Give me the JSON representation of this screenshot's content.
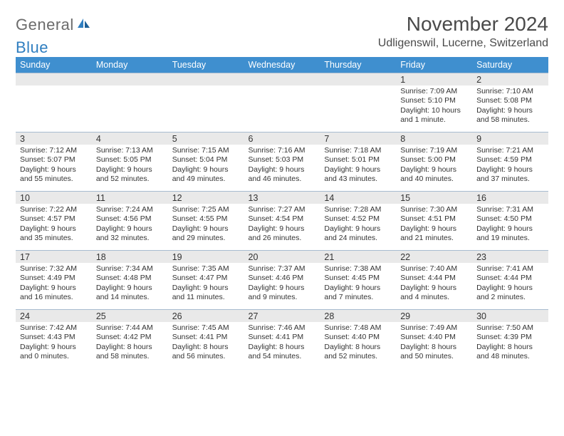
{
  "logo": {
    "word1": "General",
    "word2": "Blue"
  },
  "header": {
    "title": "November 2024",
    "subtitle": "Udligenswil, Lucerne, Switzerland"
  },
  "style": {
    "header_bg": "#3f8fcf",
    "header_fg": "#ffffff",
    "daynum_bg": "#e9e9e9",
    "cell_border": "#a8bcd0",
    "title_fontsize": 28,
    "subtitle_fontsize": 16,
    "dayhead_fontsize": 12.5,
    "event_fontsize": 10.5,
    "logo_gray": "#6b6b6b",
    "logo_blue": "#2f7ec0",
    "page_bg": "#ffffff"
  },
  "day_headers": [
    "Sunday",
    "Monday",
    "Tuesday",
    "Wednesday",
    "Thursday",
    "Friday",
    "Saturday"
  ],
  "weeks": [
    [
      {
        "n": "",
        "sunrise": "",
        "sunset": "",
        "daylight": ""
      },
      {
        "n": "",
        "sunrise": "",
        "sunset": "",
        "daylight": ""
      },
      {
        "n": "",
        "sunrise": "",
        "sunset": "",
        "daylight": ""
      },
      {
        "n": "",
        "sunrise": "",
        "sunset": "",
        "daylight": ""
      },
      {
        "n": "",
        "sunrise": "",
        "sunset": "",
        "daylight": ""
      },
      {
        "n": "1",
        "sunrise": "Sunrise: 7:09 AM",
        "sunset": "Sunset: 5:10 PM",
        "daylight": "Daylight: 10 hours and 1 minute."
      },
      {
        "n": "2",
        "sunrise": "Sunrise: 7:10 AM",
        "sunset": "Sunset: 5:08 PM",
        "daylight": "Daylight: 9 hours and 58 minutes."
      }
    ],
    [
      {
        "n": "3",
        "sunrise": "Sunrise: 7:12 AM",
        "sunset": "Sunset: 5:07 PM",
        "daylight": "Daylight: 9 hours and 55 minutes."
      },
      {
        "n": "4",
        "sunrise": "Sunrise: 7:13 AM",
        "sunset": "Sunset: 5:05 PM",
        "daylight": "Daylight: 9 hours and 52 minutes."
      },
      {
        "n": "5",
        "sunrise": "Sunrise: 7:15 AM",
        "sunset": "Sunset: 5:04 PM",
        "daylight": "Daylight: 9 hours and 49 minutes."
      },
      {
        "n": "6",
        "sunrise": "Sunrise: 7:16 AM",
        "sunset": "Sunset: 5:03 PM",
        "daylight": "Daylight: 9 hours and 46 minutes."
      },
      {
        "n": "7",
        "sunrise": "Sunrise: 7:18 AM",
        "sunset": "Sunset: 5:01 PM",
        "daylight": "Daylight: 9 hours and 43 minutes."
      },
      {
        "n": "8",
        "sunrise": "Sunrise: 7:19 AM",
        "sunset": "Sunset: 5:00 PM",
        "daylight": "Daylight: 9 hours and 40 minutes."
      },
      {
        "n": "9",
        "sunrise": "Sunrise: 7:21 AM",
        "sunset": "Sunset: 4:59 PM",
        "daylight": "Daylight: 9 hours and 37 minutes."
      }
    ],
    [
      {
        "n": "10",
        "sunrise": "Sunrise: 7:22 AM",
        "sunset": "Sunset: 4:57 PM",
        "daylight": "Daylight: 9 hours and 35 minutes."
      },
      {
        "n": "11",
        "sunrise": "Sunrise: 7:24 AM",
        "sunset": "Sunset: 4:56 PM",
        "daylight": "Daylight: 9 hours and 32 minutes."
      },
      {
        "n": "12",
        "sunrise": "Sunrise: 7:25 AM",
        "sunset": "Sunset: 4:55 PM",
        "daylight": "Daylight: 9 hours and 29 minutes."
      },
      {
        "n": "13",
        "sunrise": "Sunrise: 7:27 AM",
        "sunset": "Sunset: 4:54 PM",
        "daylight": "Daylight: 9 hours and 26 minutes."
      },
      {
        "n": "14",
        "sunrise": "Sunrise: 7:28 AM",
        "sunset": "Sunset: 4:52 PM",
        "daylight": "Daylight: 9 hours and 24 minutes."
      },
      {
        "n": "15",
        "sunrise": "Sunrise: 7:30 AM",
        "sunset": "Sunset: 4:51 PM",
        "daylight": "Daylight: 9 hours and 21 minutes."
      },
      {
        "n": "16",
        "sunrise": "Sunrise: 7:31 AM",
        "sunset": "Sunset: 4:50 PM",
        "daylight": "Daylight: 9 hours and 19 minutes."
      }
    ],
    [
      {
        "n": "17",
        "sunrise": "Sunrise: 7:32 AM",
        "sunset": "Sunset: 4:49 PM",
        "daylight": "Daylight: 9 hours and 16 minutes."
      },
      {
        "n": "18",
        "sunrise": "Sunrise: 7:34 AM",
        "sunset": "Sunset: 4:48 PM",
        "daylight": "Daylight: 9 hours and 14 minutes."
      },
      {
        "n": "19",
        "sunrise": "Sunrise: 7:35 AM",
        "sunset": "Sunset: 4:47 PM",
        "daylight": "Daylight: 9 hours and 11 minutes."
      },
      {
        "n": "20",
        "sunrise": "Sunrise: 7:37 AM",
        "sunset": "Sunset: 4:46 PM",
        "daylight": "Daylight: 9 hours and 9 minutes."
      },
      {
        "n": "21",
        "sunrise": "Sunrise: 7:38 AM",
        "sunset": "Sunset: 4:45 PM",
        "daylight": "Daylight: 9 hours and 7 minutes."
      },
      {
        "n": "22",
        "sunrise": "Sunrise: 7:40 AM",
        "sunset": "Sunset: 4:44 PM",
        "daylight": "Daylight: 9 hours and 4 minutes."
      },
      {
        "n": "23",
        "sunrise": "Sunrise: 7:41 AM",
        "sunset": "Sunset: 4:44 PM",
        "daylight": "Daylight: 9 hours and 2 minutes."
      }
    ],
    [
      {
        "n": "24",
        "sunrise": "Sunrise: 7:42 AM",
        "sunset": "Sunset: 4:43 PM",
        "daylight": "Daylight: 9 hours and 0 minutes."
      },
      {
        "n": "25",
        "sunrise": "Sunrise: 7:44 AM",
        "sunset": "Sunset: 4:42 PM",
        "daylight": "Daylight: 8 hours and 58 minutes."
      },
      {
        "n": "26",
        "sunrise": "Sunrise: 7:45 AM",
        "sunset": "Sunset: 4:41 PM",
        "daylight": "Daylight: 8 hours and 56 minutes."
      },
      {
        "n": "27",
        "sunrise": "Sunrise: 7:46 AM",
        "sunset": "Sunset: 4:41 PM",
        "daylight": "Daylight: 8 hours and 54 minutes."
      },
      {
        "n": "28",
        "sunrise": "Sunrise: 7:48 AM",
        "sunset": "Sunset: 4:40 PM",
        "daylight": "Daylight: 8 hours and 52 minutes."
      },
      {
        "n": "29",
        "sunrise": "Sunrise: 7:49 AM",
        "sunset": "Sunset: 4:40 PM",
        "daylight": "Daylight: 8 hours and 50 minutes."
      },
      {
        "n": "30",
        "sunrise": "Sunrise: 7:50 AM",
        "sunset": "Sunset: 4:39 PM",
        "daylight": "Daylight: 8 hours and 48 minutes."
      }
    ]
  ]
}
